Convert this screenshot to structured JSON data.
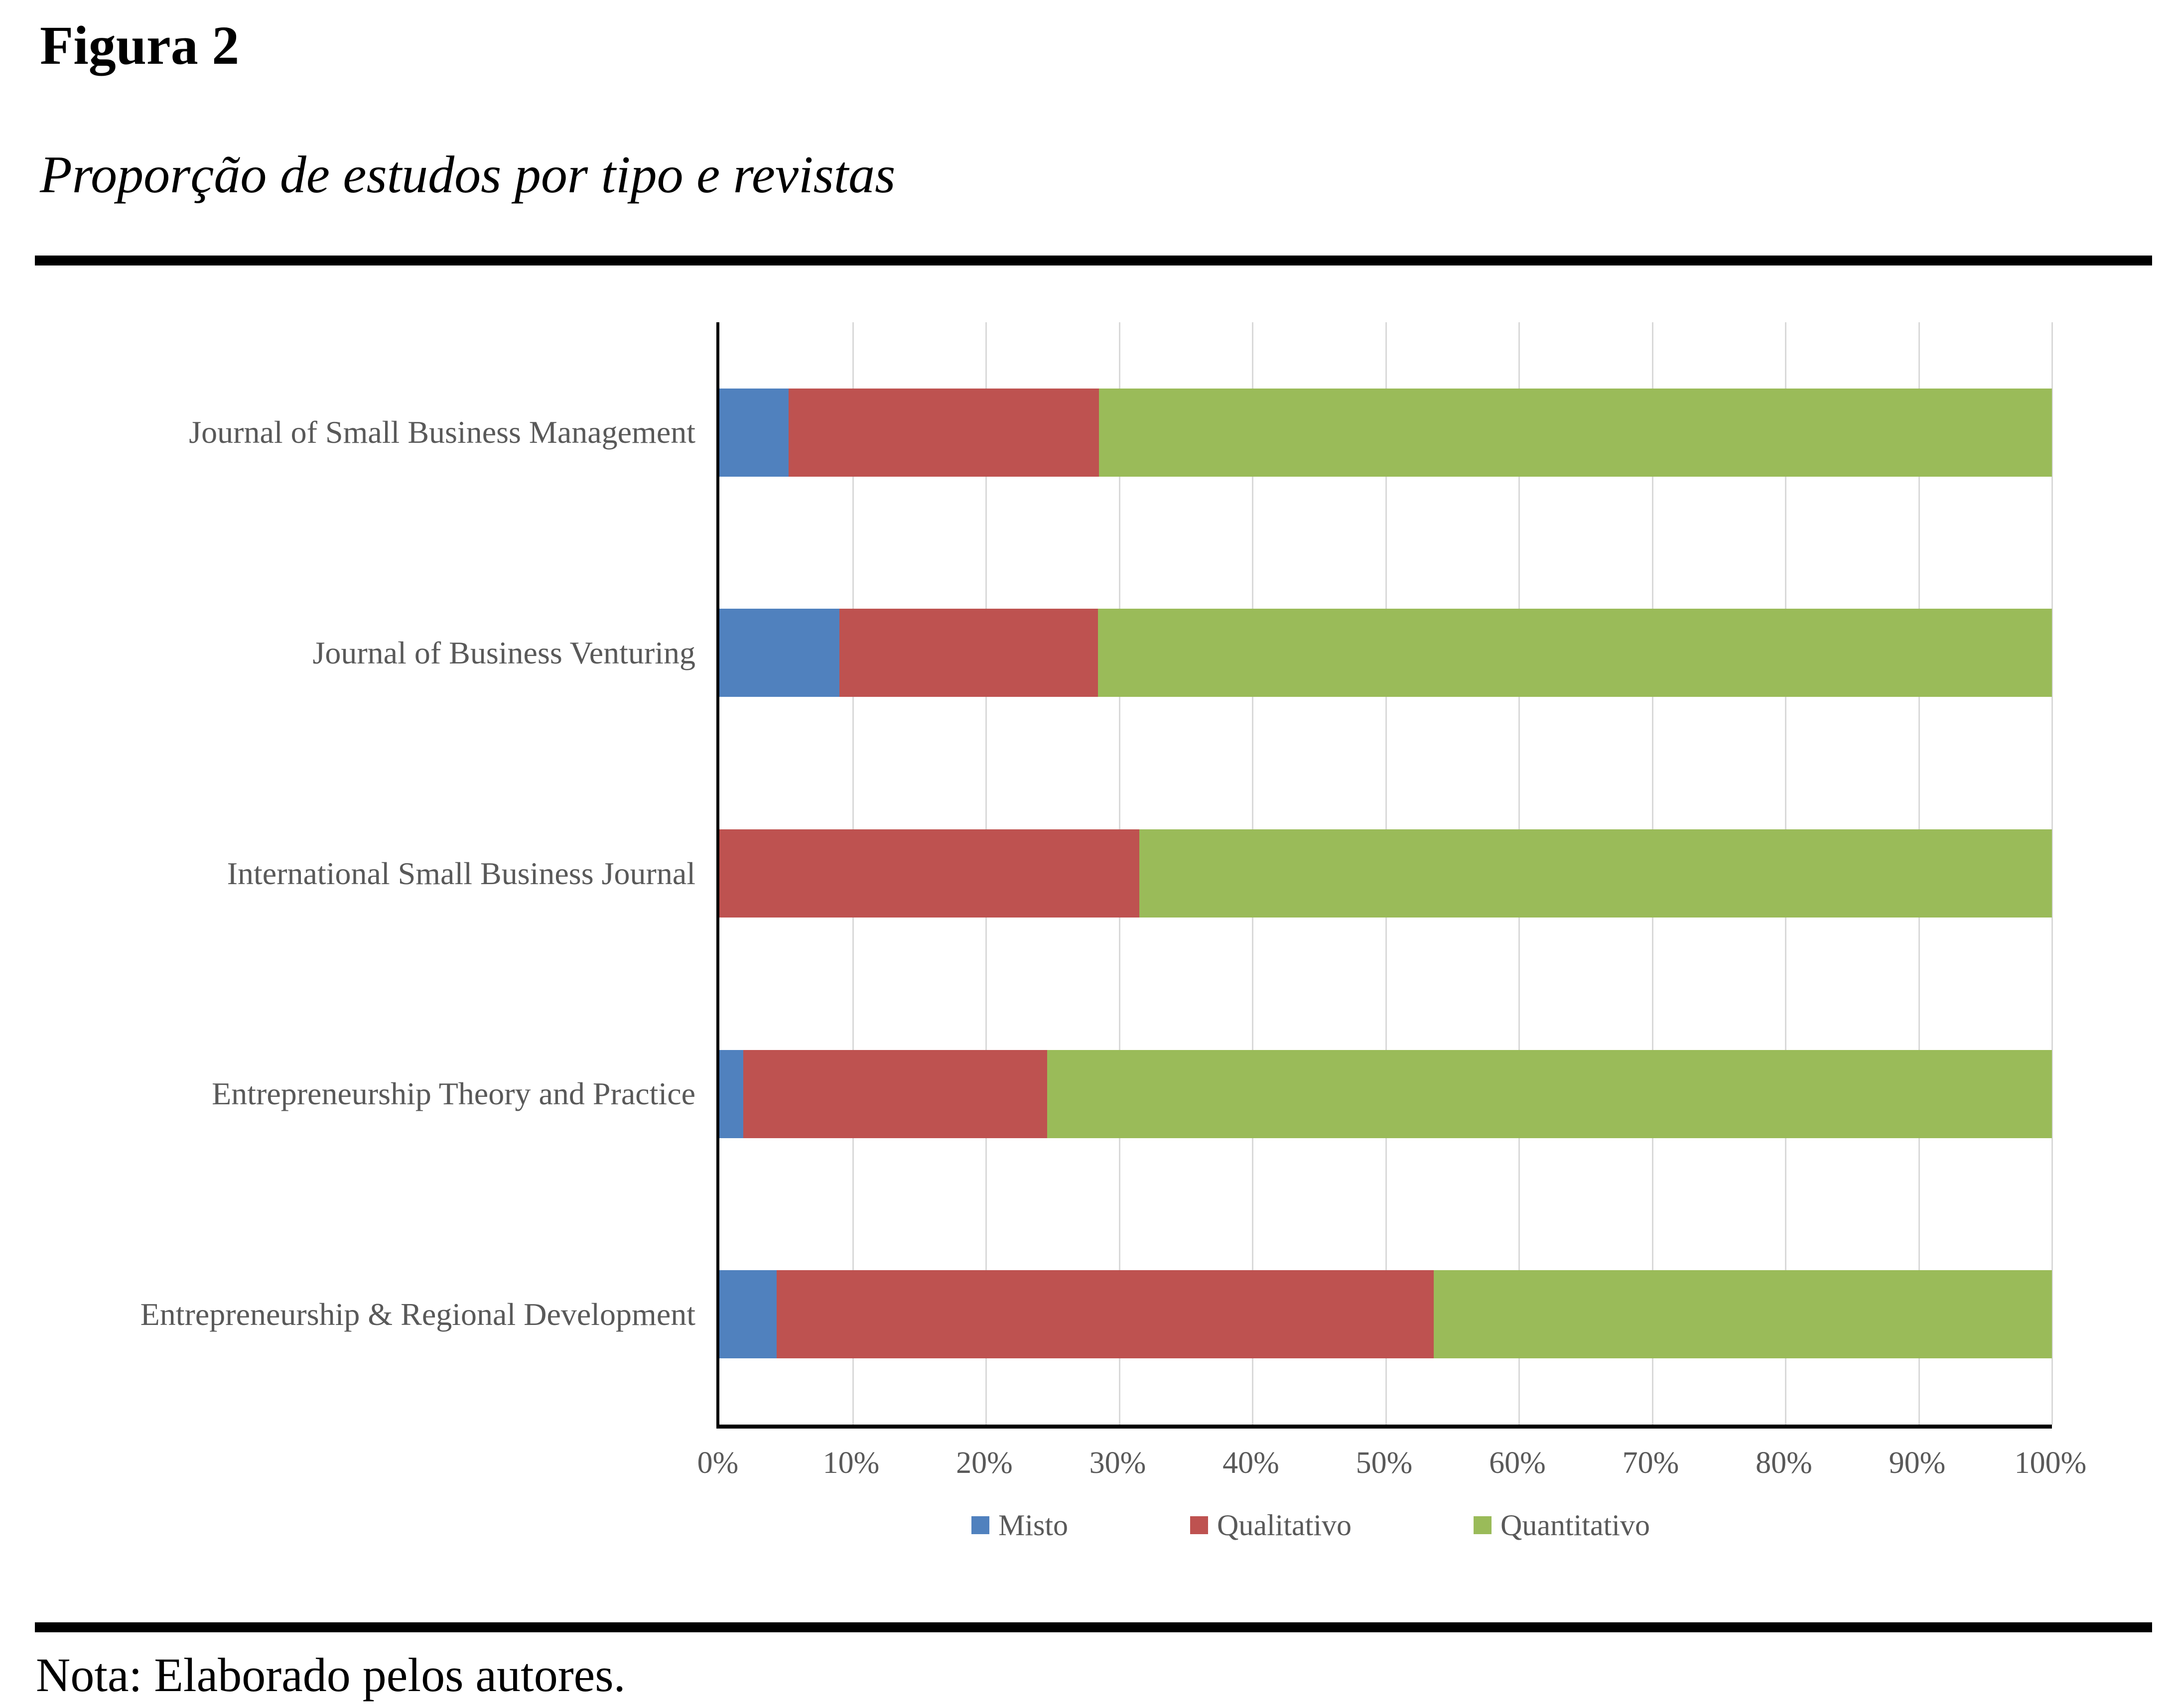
{
  "figure": {
    "label": "Figura 2",
    "title": "Proporção de estudos por tipo e revistas",
    "note": "Nota: Elaborado pelos autores."
  },
  "chart_data": {
    "type": "bar",
    "orientation": "horizontal",
    "stacked": true,
    "title": "Proporção de estudos por tipo e revistas",
    "categories": [
      "Journal of Small Business Management",
      "Journal of Business Venturing",
      "International Small Business Journal",
      "Entrepreneurship Theory and Practice",
      "Entrepreneurship & Regional Development"
    ],
    "series": [
      {
        "name": "Misto",
        "color": "#5081BE",
        "values": [
          5.2,
          9.0,
          0.0,
          1.8,
          4.3
        ]
      },
      {
        "name": "Qualitativo",
        "color": "#BE5250",
        "values": [
          23.3,
          19.4,
          31.5,
          22.8,
          49.3
        ]
      },
      {
        "name": "Quantitativo",
        "color": "#9ABB59",
        "values": [
          71.5,
          71.6,
          68.5,
          75.4,
          46.4
        ]
      }
    ],
    "x_ticks": [
      "0%",
      "10%",
      "20%",
      "30%",
      "40%",
      "50%",
      "60%",
      "70%",
      "80%",
      "90%",
      "100%"
    ],
    "xlim": [
      0,
      100
    ],
    "xlabel": "",
    "ylabel": "",
    "grid": true,
    "legend_position": "bottom"
  },
  "colors": {
    "misto": "#5081BE",
    "qualitativo": "#BE5250",
    "quantitativo": "#9ABB59",
    "grid_line": "#D9D9D9",
    "axis_line": "#000000",
    "label_text": "#595959",
    "rule": "#000000",
    "background": "#FFFFFF"
  }
}
